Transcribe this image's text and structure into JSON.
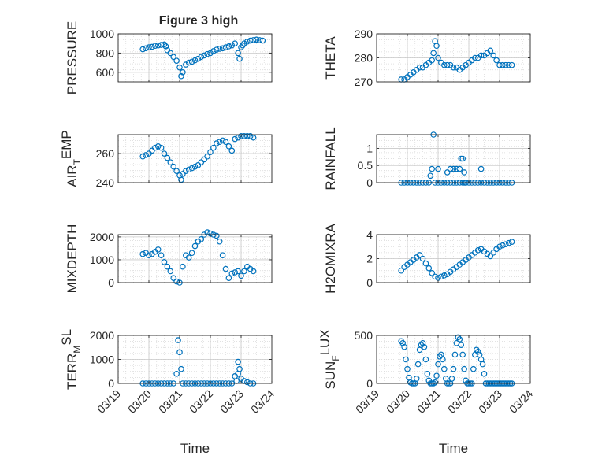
{
  "figure": {
    "title": "Figure 3 high",
    "marker_color": "#0072bd",
    "x_tick_labels": [
      "03/19",
      "03/20",
      "03/21",
      "03/22",
      "03/23",
      "03/24"
    ]
  },
  "chart_data": [
    {
      "type": "scatter",
      "title": "Figure 3 high",
      "xlabel": "",
      "ylabel": "PRESSURE",
      "ylim": [
        500,
        1000
      ],
      "yticks": [
        600,
        800,
        1000
      ],
      "xticks": [],
      "grid": true,
      "x": [
        0.8,
        0.9,
        1.0,
        1.1,
        1.2,
        1.3,
        1.4,
        1.5,
        1.55,
        1.6,
        1.7,
        1.8,
        1.9,
        2.0,
        2.05,
        2.1,
        2.2,
        2.3,
        2.4,
        2.5,
        2.6,
        2.7,
        2.8,
        2.9,
        3.0,
        3.1,
        3.2,
        3.3,
        3.4,
        3.5,
        3.6,
        3.7,
        3.8,
        3.9,
        3.95,
        4.0,
        4.05,
        4.1,
        4.2,
        4.3,
        4.4,
        4.5,
        4.6,
        4.7
      ],
      "y": [
        840,
        850,
        860,
        865,
        875,
        880,
        885,
        890,
        870,
        830,
        800,
        760,
        720,
        650,
        560,
        600,
        680,
        700,
        710,
        725,
        740,
        760,
        775,
        790,
        800,
        820,
        835,
        845,
        850,
        860,
        870,
        880,
        900,
        800,
        740,
        860,
        880,
        900,
        920,
        930,
        935,
        940,
        935,
        930
      ]
    },
    {
      "type": "scatter",
      "xlabel": "",
      "ylabel": "THETA",
      "ylim": [
        270,
        290
      ],
      "yticks": [
        270,
        280,
        290
      ],
      "xticks": [],
      "grid": true,
      "x": [
        0.8,
        0.9,
        1.0,
        1.1,
        1.2,
        1.3,
        1.4,
        1.5,
        1.6,
        1.7,
        1.8,
        1.85,
        1.9,
        1.95,
        2.0,
        2.1,
        2.2,
        2.3,
        2.4,
        2.5,
        2.6,
        2.7,
        2.8,
        2.9,
        3.0,
        3.1,
        3.2,
        3.3,
        3.4,
        3.5,
        3.6,
        3.7,
        3.8,
        3.9,
        4.0,
        4.1,
        4.2,
        4.3,
        4.4
      ],
      "y": [
        271,
        271,
        272,
        273,
        274,
        275,
        276,
        276,
        277,
        278,
        279,
        282,
        287,
        285,
        280,
        278,
        277,
        277,
        277,
        276,
        276,
        275,
        276,
        277,
        278,
        279,
        280,
        280,
        281,
        281,
        282,
        283,
        281,
        279,
        277,
        277,
        277,
        277,
        277
      ]
    },
    {
      "type": "scatter",
      "xlabel": "",
      "ylabel": "AIR_TEMP",
      "ylim": [
        240,
        273
      ],
      "yticks": [
        240,
        260
      ],
      "xticks": [],
      "grid": true,
      "x": [
        0.8,
        0.9,
        1.0,
        1.1,
        1.2,
        1.3,
        1.4,
        1.5,
        1.6,
        1.7,
        1.8,
        1.9,
        2.0,
        2.05,
        2.1,
        2.2,
        2.3,
        2.4,
        2.5,
        2.6,
        2.7,
        2.8,
        2.9,
        3.0,
        3.1,
        3.2,
        3.3,
        3.4,
        3.5,
        3.6,
        3.7,
        3.8,
        3.9,
        4.0,
        4.1,
        4.2,
        4.3,
        4.4
      ],
      "y": [
        258,
        259,
        260,
        262,
        264,
        265,
        264,
        260,
        257,
        254,
        251,
        248,
        245,
        242,
        246,
        248,
        249,
        250,
        251,
        252,
        254,
        256,
        258,
        261,
        264,
        267,
        268,
        269,
        268,
        265,
        262,
        270,
        271,
        272,
        272,
        272,
        272,
        271
      ]
    },
    {
      "type": "scatter",
      "xlabel": "",
      "ylabel": "RAINFALL",
      "ylim": [
        0,
        1.4
      ],
      "yticks": [
        0,
        0.5,
        1
      ],
      "xticks": [],
      "grid": true,
      "x": [
        0.8,
        0.9,
        1.0,
        1.1,
        1.2,
        1.3,
        1.4,
        1.5,
        1.6,
        1.7,
        1.75,
        1.8,
        1.85,
        1.9,
        2.0,
        2.1,
        2.2,
        2.3,
        2.4,
        2.5,
        2.6,
        2.7,
        2.8,
        2.85,
        2.9,
        3.0,
        3.1,
        3.2,
        3.3,
        3.4,
        3.5,
        3.6,
        3.7,
        3.8,
        3.9,
        4.0,
        4.1,
        4.2,
        4.3,
        4.4,
        2.0,
        2.3,
        2.4,
        2.5,
        2.6,
        2.7,
        2.75,
        2.8,
        2.85,
        2.9,
        3.4
      ],
      "y": [
        0,
        0,
        0,
        0,
        0,
        0,
        0,
        0,
        0,
        0,
        0.2,
        0.4,
        1.4,
        0,
        0,
        0,
        0,
        0,
        0,
        0,
        0,
        0,
        0,
        0,
        0,
        0,
        0,
        0,
        0,
        0,
        0,
        0,
        0,
        0,
        0,
        0,
        0,
        0,
        0,
        0,
        0.4,
        0.3,
        0.4,
        0.4,
        0.4,
        0.4,
        0.7,
        0.7,
        0.3,
        0,
        0.4
      ]
    },
    {
      "type": "scatter",
      "xlabel": "",
      "ylabel": "MIXDEPTH",
      "ylim": [
        0,
        2100
      ],
      "yticks": [
        0,
        1000,
        2000
      ],
      "xticks": [],
      "grid": true,
      "x": [
        0.8,
        0.9,
        1.0,
        1.1,
        1.2,
        1.3,
        1.4,
        1.5,
        1.6,
        1.7,
        1.8,
        1.9,
        2.0,
        2.1,
        2.2,
        2.3,
        2.4,
        2.5,
        2.6,
        2.7,
        2.8,
        2.9,
        3.0,
        3.1,
        3.2,
        3.3,
        3.4,
        3.5,
        3.6,
        3.7,
        3.8,
        3.9,
        4.0,
        4.1,
        4.2,
        4.3,
        4.4
      ],
      "y": [
        1250,
        1300,
        1200,
        1250,
        1350,
        1450,
        1200,
        900,
        700,
        500,
        200,
        50,
        0,
        700,
        1200,
        1100,
        1300,
        1600,
        1800,
        1900,
        2100,
        2200,
        2150,
        2100,
        2050,
        1800,
        1200,
        600,
        200,
        400,
        450,
        500,
        300,
        500,
        700,
        600,
        500
      ]
    },
    {
      "type": "scatter",
      "xlabel": "",
      "ylabel": "H2OMIXRA",
      "ylim": [
        0,
        4
      ],
      "yticks": [
        0,
        2,
        4
      ],
      "xticks": [],
      "grid": true,
      "x": [
        0.8,
        0.9,
        1.0,
        1.1,
        1.2,
        1.3,
        1.4,
        1.5,
        1.6,
        1.7,
        1.8,
        1.9,
        2.0,
        2.1,
        2.2,
        2.3,
        2.4,
        2.5,
        2.6,
        2.7,
        2.8,
        2.9,
        3.0,
        3.1,
        3.2,
        3.3,
        3.4,
        3.5,
        3.6,
        3.7,
        3.8,
        3.9,
        4.0,
        4.1,
        4.2,
        4.3,
        4.4
      ],
      "y": [
        1.0,
        1.3,
        1.5,
        1.7,
        1.9,
        2.1,
        2.3,
        2.0,
        1.6,
        1.2,
        0.8,
        0.5,
        0.4,
        0.5,
        0.6,
        0.7,
        0.9,
        1.1,
        1.3,
        1.5,
        1.7,
        1.9,
        2.1,
        2.3,
        2.5,
        2.7,
        2.8,
        2.6,
        2.4,
        2.2,
        2.5,
        2.8,
        3.0,
        3.1,
        3.2,
        3.3,
        3.4
      ]
    },
    {
      "type": "scatter",
      "xlabel": "Time",
      "ylabel": "TERR_MSL",
      "ylim": [
        0,
        2000
      ],
      "yticks": [
        0,
        1000,
        2000
      ],
      "grid": true,
      "xticks": [
        0,
        1,
        2,
        3,
        4,
        5
      ],
      "xticklabels": [
        "03/19",
        "03/20",
        "03/21",
        "03/22",
        "03/23",
        "03/24"
      ],
      "x": [
        0.8,
        0.9,
        1.0,
        1.1,
        1.2,
        1.3,
        1.4,
        1.5,
        1.6,
        1.7,
        1.8,
        1.9,
        1.95,
        2.0,
        2.05,
        2.1,
        2.2,
        2.3,
        2.4,
        2.5,
        2.6,
        2.7,
        2.8,
        2.9,
        3.0,
        3.1,
        3.2,
        3.3,
        3.4,
        3.5,
        3.6,
        3.7,
        3.8,
        3.85,
        3.9,
        4.0,
        4.1,
        4.2,
        4.3,
        4.4,
        3.9,
        3.95
      ],
      "y": [
        0,
        0,
        0,
        0,
        0,
        0,
        0,
        0,
        0,
        0,
        0,
        400,
        1800,
        1300,
        600,
        0,
        0,
        0,
        0,
        0,
        0,
        0,
        0,
        0,
        0,
        0,
        0,
        0,
        0,
        0,
        0,
        0,
        300,
        100,
        400,
        200,
        100,
        50,
        0,
        0,
        900,
        600
      ]
    },
    {
      "type": "scatter",
      "xlabel": "Time",
      "ylabel": "SUN_FLUX",
      "ylim": [
        0,
        500
      ],
      "yticks": [
        0,
        500
      ],
      "grid": true,
      "xticks": [
        0,
        1,
        2,
        3,
        4,
        5
      ],
      "xticklabels": [
        "03/19",
        "03/20",
        "03/21",
        "03/22",
        "03/23",
        "03/24"
      ],
      "x": [
        0.8,
        0.85,
        0.9,
        0.95,
        1.0,
        1.05,
        1.1,
        1.15,
        1.2,
        1.25,
        1.3,
        1.35,
        1.4,
        1.45,
        1.5,
        1.55,
        1.6,
        1.65,
        1.7,
        1.75,
        1.8,
        1.85,
        1.9,
        1.95,
        2.0,
        2.05,
        2.1,
        2.15,
        2.2,
        2.25,
        2.3,
        2.35,
        2.4,
        2.45,
        2.5,
        2.55,
        2.6,
        2.65,
        2.7,
        2.75,
        2.8,
        2.85,
        2.9,
        2.95,
        3.0,
        3.05,
        3.1,
        3.15,
        3.2,
        3.25,
        3.3,
        3.35,
        3.4,
        3.45,
        3.5,
        3.55,
        3.6,
        3.65,
        3.7,
        3.75,
        3.8,
        3.85,
        3.9,
        3.95,
        4.0,
        4.05,
        4.1,
        4.15,
        4.2,
        4.25,
        4.3,
        4.35,
        4.4
      ],
      "y": [
        440,
        420,
        380,
        250,
        150,
        60,
        10,
        0,
        0,
        0,
        50,
        200,
        350,
        400,
        420,
        380,
        250,
        100,
        30,
        0,
        0,
        0,
        10,
        80,
        200,
        280,
        300,
        250,
        150,
        50,
        0,
        0,
        0,
        50,
        150,
        300,
        420,
        480,
        460,
        400,
        300,
        150,
        30,
        0,
        0,
        0,
        0,
        150,
        300,
        350,
        330,
        300,
        250,
        200,
        100,
        0,
        0,
        0,
        0,
        0,
        0,
        0,
        0,
        0,
        0,
        0,
        0,
        0,
        0,
        0,
        0,
        0,
        0
      ]
    }
  ]
}
